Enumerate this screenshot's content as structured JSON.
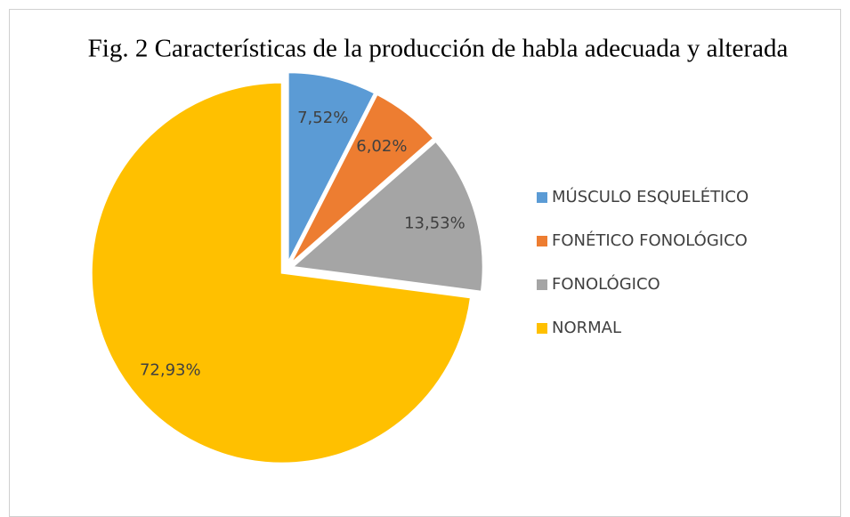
{
  "chart_data": {
    "type": "pie",
    "title": "Fig. 2 Características de la producción de habla adecuada y alterada",
    "categories": [
      "MÚSCULO ESQUELÉTICO",
      "FONÉTICO FONOLÓGICO",
      "FONOLÓGICO",
      "NORMAL"
    ],
    "values": [
      7.52,
      6.02,
      13.53,
      72.93
    ],
    "value_labels": [
      "7,52%",
      "6,02%",
      "13,53%",
      "72,93%"
    ],
    "colors": [
      "#5b9bd5",
      "#ed7d31",
      "#a5a5a5",
      "#ffc000"
    ],
    "legend": "right"
  }
}
